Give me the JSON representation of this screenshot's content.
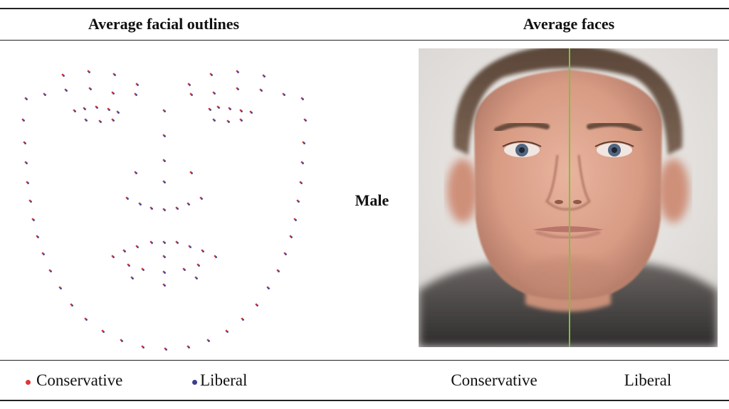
{
  "headers": {
    "left": "Average facial outlines",
    "right": "Average faces"
  },
  "row_label": "Male",
  "legend": {
    "conservative": {
      "label": "Conservative",
      "color": "#d9383a"
    },
    "liberal": {
      "label": "Liberal",
      "color": "#3b3f8f"
    }
  },
  "face_labels": {
    "left": "Conservative",
    "right": "Liberal"
  },
  "divider_color": "#7fbf3f"
}
